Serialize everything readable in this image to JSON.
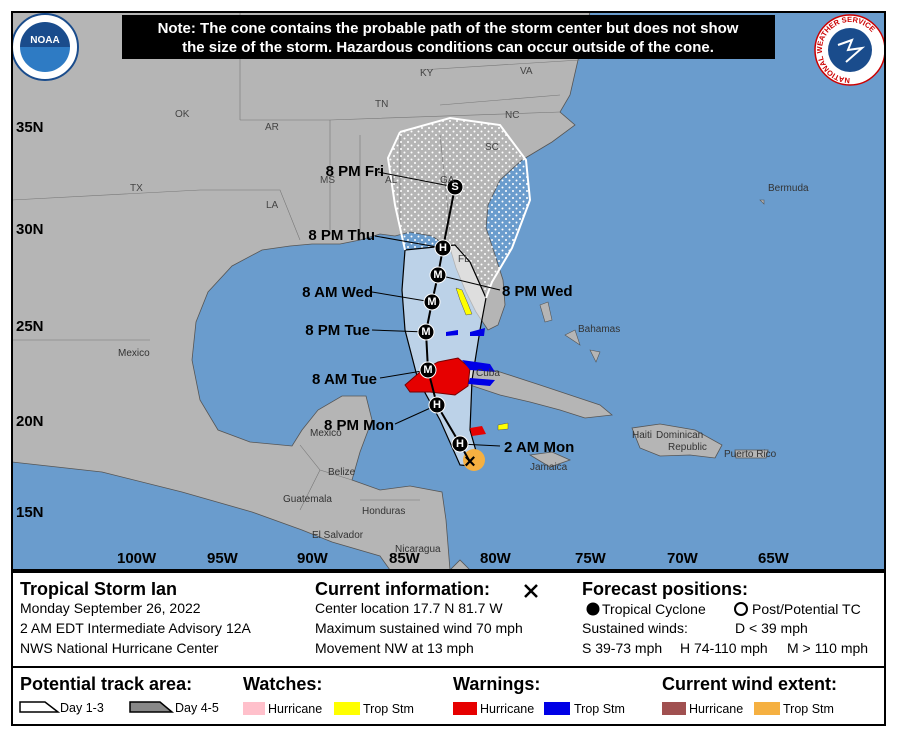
{
  "header": {
    "note": [
      "Note: The cone contains the probable path of the storm center but does not show",
      "the size of the storm. Hazardous conditions can occur outside of the cone."
    ],
    "noaa": "NOAA",
    "nws": "NATIONAL WEATHER SERVICE"
  },
  "map": {
    "states": [
      "KY",
      "VA",
      "TN",
      "NC",
      "OK",
      "AR",
      "SC",
      "TX",
      "MS",
      "AL",
      "GA",
      "LA",
      "FL"
    ],
    "places": [
      "Bermuda",
      "Bahamas",
      "Mexico",
      "Cuba",
      "Haiti",
      "Dominican",
      "Republic",
      "Puerto Rico",
      "Jamaica",
      "Mexico",
      "Belize",
      "Guatemala",
      "Honduras",
      "El Salvador",
      "Nicaragua"
    ],
    "latitudes": [
      "35N",
      "30N",
      "25N",
      "20N",
      "15N"
    ],
    "longitudes": [
      "100W",
      "95W",
      "90W",
      "85W",
      "80W",
      "75W",
      "70W",
      "65W"
    ],
    "forecast_points": [
      {
        "label": "2 AM Mon",
        "marker": "×"
      },
      {
        "label": "",
        "marker": "H"
      },
      {
        "label": "8 PM Mon",
        "marker": "H"
      },
      {
        "label": "8 AM Tue",
        "marker": "M"
      },
      {
        "label": "8 PM Tue",
        "marker": "M"
      },
      {
        "label": "8 AM Wed",
        "marker": "M"
      },
      {
        "label": "8 PM Wed",
        "marker": "M"
      },
      {
        "label": "8 PM Thu",
        "marker": "H"
      },
      {
        "label": "8 PM Fri",
        "marker": "S"
      }
    ]
  },
  "info": {
    "storm": {
      "title": "Tropical Storm Ian",
      "lines": [
        "Monday September 26, 2022",
        "2 AM EDT Intermediate Advisory 12A",
        "NWS National Hurricane Center"
      ]
    },
    "current": {
      "title": "Current information:",
      "lines": [
        "Center location 17.7 N 81.7 W",
        "Maximum sustained wind 70 mph",
        "Movement NW at 13 mph"
      ]
    },
    "forecast": {
      "title": "Forecast positions:",
      "tropical": "Tropical Cyclone",
      "post": "Post/Potential TC",
      "winds": "Sustained winds:",
      "d": "D < 39 mph",
      "s": "S 39-73 mph",
      "h": "H 74-110 mph",
      "m": "M > 110 mph"
    }
  },
  "legend": {
    "track": {
      "title": "Potential track area:",
      "day13": "Day 1-3",
      "day45": "Day 4-5"
    },
    "watches": {
      "title": "Watches:",
      "hurricane": "Hurricane",
      "trop": "Trop Stm"
    },
    "warnings": {
      "title": "Warnings:",
      "hurricane": "Hurricane",
      "trop": "Trop Stm"
    },
    "wind": {
      "title": "Current wind extent:",
      "hurricane": "Hurricane",
      "trop": "Trop Stm"
    }
  }
}
